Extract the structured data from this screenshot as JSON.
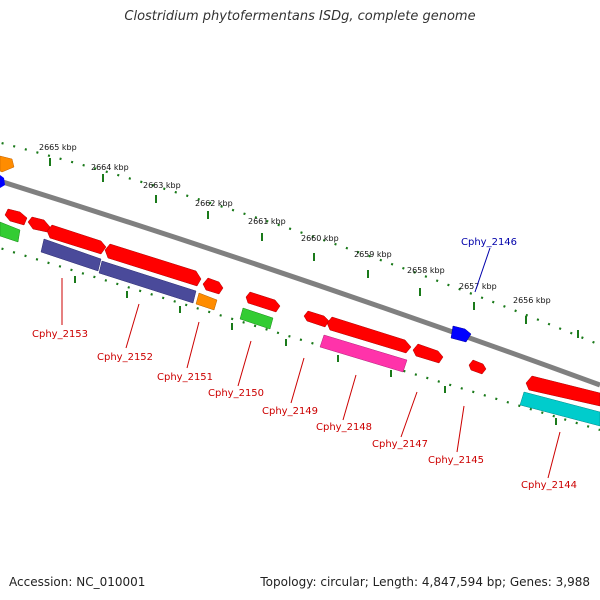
{
  "title": "Clostridium phytofermentans ISDg, complete genome",
  "footer": {
    "accession": "Accession: NC_010001",
    "topology": "Topology: circular; Length: 4,847,594 bp; Genes: 3,988"
  },
  "kbp_ticks": [
    "2665 kbp",
    "2664 kbp",
    "2663 kbp",
    "2662 kbp",
    "2661 kbp",
    "2660 kbp",
    "2659 kbp",
    "2658 kbp",
    "2657 kbp",
    "2656 kbp"
  ],
  "genes": [
    {
      "name": "Cphy_2153",
      "color": "#cc0000"
    },
    {
      "name": "Cphy_2152",
      "color": "#cc0000"
    },
    {
      "name": "Cphy_2151",
      "color": "#cc0000"
    },
    {
      "name": "Cphy_2150",
      "color": "#cc0000"
    },
    {
      "name": "Cphy_2149",
      "color": "#cc0000"
    },
    {
      "name": "Cphy_2148",
      "color": "#cc0000"
    },
    {
      "name": "Cphy_2147",
      "color": "#cc0000"
    },
    {
      "name": "Cphy_2146",
      "color": "#0000aa"
    },
    {
      "name": "Cphy_2145",
      "color": "#cc0000"
    },
    {
      "name": "Cphy_2144",
      "color": "#cc0000"
    }
  ],
  "colors": {
    "backbone": "#808080",
    "tick_dots": "#1a7a1a",
    "forward_cds": "#ff0000",
    "reverse_cds_blue": "#0000ff",
    "purple_feature": "#4a4a9a",
    "orange_feature": "#ff8c00",
    "green_feature": "#33cc33",
    "magenta_feature": "#ff33aa",
    "cyan_feature": "#00cccc"
  }
}
